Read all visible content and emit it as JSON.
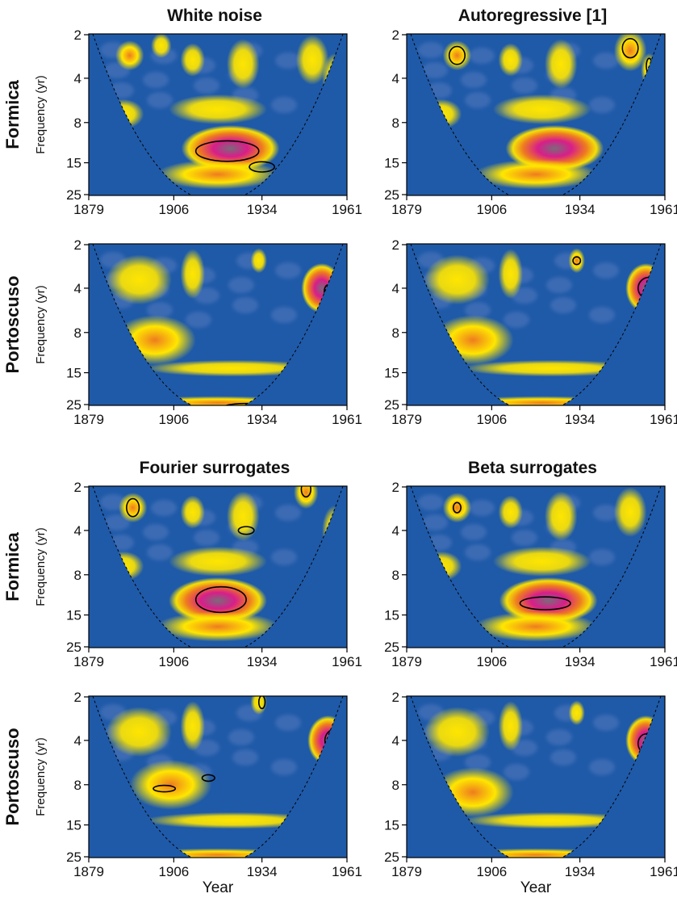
{
  "figure": {
    "column_titles": [
      "White noise",
      "Autoregressive [1]",
      "Fourier surrogates",
      "Beta surrogates"
    ],
    "row_labels": [
      "Formica",
      "Portoscuso"
    ],
    "y_axis_label": "Frequency (yr)",
    "x_axis_label": "Year"
  },
  "colors": {
    "background": "#1f5aa8",
    "low": "#5f80c2",
    "mid": "#ffe600",
    "high": "#ee7c1f",
    "higher": "#d81e8a",
    "peak": "#7a6a7a",
    "contour": "#000000"
  },
  "chart_data": [
    {
      "type": "heatmap",
      "title": "White noise",
      "row": "Formica",
      "x_ticks": [
        "1879",
        "1906",
        "1934",
        "1961"
      ],
      "y_ticks": [
        "2",
        "4",
        "8",
        "15",
        "25"
      ],
      "xlim": [
        1879,
        1961
      ],
      "ylim": [
        2,
        25
      ],
      "y_scale": "log",
      "show_x_label": false,
      "blobs": [
        {
          "x": 1892,
          "y": 2.8,
          "rx": 3.5,
          "ry": 0.18,
          "v": 0.6
        },
        {
          "x": 1902,
          "y": 2.4,
          "rx": 2.5,
          "ry": 0.15,
          "v": 0.4
        },
        {
          "x": 1912,
          "y": 3.0,
          "rx": 3,
          "ry": 0.2,
          "v": 0.45
        },
        {
          "x": 1928,
          "y": 3.2,
          "rx": 4,
          "ry": 0.3,
          "v": 0.5
        },
        {
          "x": 1950,
          "y": 3.0,
          "rx": 4,
          "ry": 0.3,
          "v": 0.55
        },
        {
          "x": 1957,
          "y": 4.0,
          "rx": 3,
          "ry": 0.3,
          "v": 0.4
        },
        {
          "x": 1890,
          "y": 7.0,
          "rx": 5,
          "ry": 0.18,
          "v": 0.5
        },
        {
          "x": 1920,
          "y": 6.5,
          "rx": 12,
          "ry": 0.18,
          "v": 0.45
        },
        {
          "x": 1924,
          "y": 12.0,
          "rx": 12,
          "ry": 0.28,
          "v": 1.0
        },
        {
          "x": 1920,
          "y": 18.0,
          "rx": 15,
          "ry": 0.18,
          "v": 0.6
        }
      ],
      "contours": [
        {
          "x": 1923,
          "y": 12.5,
          "rx": 10,
          "ry": 0.16
        },
        {
          "x": 1934,
          "y": 16.0,
          "rx": 4,
          "ry": 0.08
        }
      ]
    },
    {
      "type": "heatmap",
      "title": "Autoregressive [1]",
      "row": "Formica",
      "x_ticks": [
        "1879",
        "1906",
        "1934",
        "1961"
      ],
      "y_ticks": [
        "2",
        "4",
        "8",
        "15",
        "25"
      ],
      "xlim": [
        1879,
        1961
      ],
      "ylim": [
        2,
        25
      ],
      "y_scale": "log",
      "show_x_label": false,
      "blobs": [
        {
          "x": 1895,
          "y": 2.8,
          "rx": 3.5,
          "ry": 0.18,
          "v": 0.7
        },
        {
          "x": 1912,
          "y": 3.0,
          "rx": 3,
          "ry": 0.2,
          "v": 0.45
        },
        {
          "x": 1928,
          "y": 3.2,
          "rx": 4,
          "ry": 0.3,
          "v": 0.5
        },
        {
          "x": 1950,
          "y": 2.6,
          "rx": 4,
          "ry": 0.25,
          "v": 0.65
        },
        {
          "x": 1956,
          "y": 3.5,
          "rx": 2,
          "ry": 0.2,
          "v": 0.45
        },
        {
          "x": 1890,
          "y": 7.0,
          "rx": 5,
          "ry": 0.18,
          "v": 0.5
        },
        {
          "x": 1922,
          "y": 6.5,
          "rx": 12,
          "ry": 0.18,
          "v": 0.45
        },
        {
          "x": 1926,
          "y": 12.0,
          "rx": 12,
          "ry": 0.28,
          "v": 1.0
        },
        {
          "x": 1920,
          "y": 18.0,
          "rx": 15,
          "ry": 0.18,
          "v": 0.6
        }
      ],
      "contours": [
        {
          "x": 1895,
          "y": 2.8,
          "rx": 2.5,
          "ry": 0.14
        },
        {
          "x": 1950,
          "y": 2.5,
          "rx": 2.5,
          "ry": 0.15
        },
        {
          "x": 1956,
          "y": 3.3,
          "rx": 0.9,
          "ry": 0.12
        }
      ]
    },
    {
      "type": "heatmap",
      "title": "",
      "row": "Portoscuso",
      "x_ticks": [
        "1879",
        "1906",
        "1934",
        "1961"
      ],
      "y_ticks": [
        "2",
        "4",
        "8",
        "15",
        "25"
      ],
      "xlim": [
        1879,
        1961
      ],
      "ylim": [
        2,
        25
      ],
      "y_scale": "log",
      "show_x_label": false,
      "blobs": [
        {
          "x": 1895,
          "y": 3.5,
          "rx": 8,
          "ry": 0.3,
          "v": 0.5
        },
        {
          "x": 1912,
          "y": 3.2,
          "rx": 3,
          "ry": 0.3,
          "v": 0.45
        },
        {
          "x": 1933,
          "y": 2.6,
          "rx": 2,
          "ry": 0.15,
          "v": 0.55
        },
        {
          "x": 1953,
          "y": 4.0,
          "rx": 5,
          "ry": 0.3,
          "v": 0.95
        },
        {
          "x": 1900,
          "y": 9.0,
          "rx": 10,
          "ry": 0.3,
          "v": 0.6
        },
        {
          "x": 1925,
          "y": 14.0,
          "rx": 22,
          "ry": 0.1,
          "v": 0.5
        },
        {
          "x": 1920,
          "y": 24.0,
          "rx": 22,
          "ry": 0.08,
          "v": 0.6
        }
      ],
      "contours": [
        {
          "x": 1955,
          "y": 4.2,
          "rx": 1.2,
          "ry": 0.1
        },
        {
          "x": 1930,
          "y": 25.5,
          "rx": 8,
          "ry": 0.04
        }
      ]
    },
    {
      "type": "heatmap",
      "title": "",
      "row": "Portoscuso",
      "x_ticks": [
        "1879",
        "1906",
        "1934",
        "1961"
      ],
      "y_ticks": [
        "2",
        "4",
        "8",
        "15",
        "25"
      ],
      "xlim": [
        1879,
        1961
      ],
      "ylim": [
        2,
        25
      ],
      "y_scale": "log",
      "show_x_label": false,
      "blobs": [
        {
          "x": 1895,
          "y": 3.5,
          "rx": 8,
          "ry": 0.3,
          "v": 0.5
        },
        {
          "x": 1912,
          "y": 3.2,
          "rx": 3,
          "ry": 0.3,
          "v": 0.45
        },
        {
          "x": 1933,
          "y": 2.6,
          "rx": 2,
          "ry": 0.15,
          "v": 0.6
        },
        {
          "x": 1955,
          "y": 4.0,
          "rx": 5,
          "ry": 0.3,
          "v": 0.95
        },
        {
          "x": 1900,
          "y": 9.0,
          "rx": 10,
          "ry": 0.3,
          "v": 0.6
        },
        {
          "x": 1925,
          "y": 14.0,
          "rx": 22,
          "ry": 0.1,
          "v": 0.5
        },
        {
          "x": 1922,
          "y": 24.0,
          "rx": 22,
          "ry": 0.08,
          "v": 0.6
        }
      ],
      "contours": [
        {
          "x": 1933,
          "y": 2.6,
          "rx": 1.2,
          "ry": 0.06
        },
        {
          "x": 1956,
          "y": 4.0,
          "rx": 3.5,
          "ry": 0.17
        }
      ]
    },
    {
      "type": "heatmap",
      "title": "Fourier surrogates",
      "row": "Formica",
      "x_ticks": [
        "1879",
        "1906",
        "1934",
        "1961"
      ],
      "y_ticks": [
        "2",
        "4",
        "8",
        "15",
        "25"
      ],
      "xlim": [
        1879,
        1961
      ],
      "ylim": [
        2,
        25
      ],
      "y_scale": "log",
      "show_x_label": false,
      "blobs": [
        {
          "x": 1893,
          "y": 2.8,
          "rx": 3.5,
          "ry": 0.18,
          "v": 0.7
        },
        {
          "x": 1912,
          "y": 3.0,
          "rx": 3,
          "ry": 0.2,
          "v": 0.45
        },
        {
          "x": 1928,
          "y": 3.2,
          "rx": 4,
          "ry": 0.3,
          "v": 0.5
        },
        {
          "x": 1948,
          "y": 2.2,
          "rx": 3,
          "ry": 0.2,
          "v": 0.6
        },
        {
          "x": 1957,
          "y": 4.0,
          "rx": 3,
          "ry": 0.3,
          "v": 0.5
        },
        {
          "x": 1890,
          "y": 7.0,
          "rx": 5,
          "ry": 0.18,
          "v": 0.5
        },
        {
          "x": 1920,
          "y": 6.5,
          "rx": 12,
          "ry": 0.18,
          "v": 0.45
        },
        {
          "x": 1920,
          "y": 12.0,
          "rx": 12,
          "ry": 0.28,
          "v": 1.0
        },
        {
          "x": 1920,
          "y": 18.0,
          "rx": 15,
          "ry": 0.18,
          "v": 0.6
        }
      ],
      "contours": [
        {
          "x": 1893,
          "y": 2.8,
          "rx": 2,
          "ry": 0.14
        },
        {
          "x": 1929,
          "y": 4.0,
          "rx": 2.5,
          "ry": 0.06
        },
        {
          "x": 1948,
          "y": 2.1,
          "rx": 1.5,
          "ry": 0.12
        },
        {
          "x": 1958,
          "y": 3.8,
          "rx": 0.8,
          "ry": 0.14
        },
        {
          "x": 1921,
          "y": 11.8,
          "rx": 8,
          "ry": 0.2
        }
      ]
    },
    {
      "type": "heatmap",
      "title": "Beta surrogates",
      "row": "Formica",
      "x_ticks": [
        "1879",
        "1906",
        "1934",
        "1961"
      ],
      "y_ticks": [
        "2",
        "4",
        "8",
        "15",
        "25"
      ],
      "xlim": [
        1879,
        1961
      ],
      "ylim": [
        2,
        25
      ],
      "y_scale": "log",
      "show_x_label": false,
      "blobs": [
        {
          "x": 1895,
          "y": 2.8,
          "rx": 3.5,
          "ry": 0.18,
          "v": 0.65
        },
        {
          "x": 1912,
          "y": 3.0,
          "rx": 3,
          "ry": 0.2,
          "v": 0.45
        },
        {
          "x": 1928,
          "y": 3.2,
          "rx": 4,
          "ry": 0.3,
          "v": 0.5
        },
        {
          "x": 1950,
          "y": 3.0,
          "rx": 4,
          "ry": 0.3,
          "v": 0.55
        },
        {
          "x": 1890,
          "y": 7.0,
          "rx": 5,
          "ry": 0.18,
          "v": 0.5
        },
        {
          "x": 1922,
          "y": 6.5,
          "rx": 12,
          "ry": 0.18,
          "v": 0.45
        },
        {
          "x": 1924,
          "y": 12.0,
          "rx": 12,
          "ry": 0.28,
          "v": 1.0
        },
        {
          "x": 1920,
          "y": 18.0,
          "rx": 15,
          "ry": 0.18,
          "v": 0.6
        }
      ],
      "contours": [
        {
          "x": 1895,
          "y": 2.8,
          "rx": 1.2,
          "ry": 0.08
        },
        {
          "x": 1923,
          "y": 12.5,
          "rx": 8,
          "ry": 0.1
        }
      ]
    },
    {
      "type": "heatmap",
      "title": "",
      "row": "Portoscuso",
      "x_ticks": [
        "1879",
        "1906",
        "1934",
        "1961"
      ],
      "y_ticks": [
        "2",
        "4",
        "8",
        "15",
        "25"
      ],
      "xlim": [
        1879,
        1961
      ],
      "ylim": [
        2,
        25
      ],
      "y_scale": "log",
      "show_x_label": true,
      "blobs": [
        {
          "x": 1895,
          "y": 3.5,
          "rx": 8,
          "ry": 0.3,
          "v": 0.5
        },
        {
          "x": 1912,
          "y": 3.2,
          "rx": 3,
          "ry": 0.3,
          "v": 0.45
        },
        {
          "x": 1933,
          "y": 2.2,
          "rx": 2,
          "ry": 0.15,
          "v": 0.55
        },
        {
          "x": 1955,
          "y": 4.0,
          "rx": 5,
          "ry": 0.3,
          "v": 0.95
        },
        {
          "x": 1905,
          "y": 8.0,
          "rx": 10,
          "ry": 0.3,
          "v": 0.6
        },
        {
          "x": 1925,
          "y": 14.0,
          "rx": 22,
          "ry": 0.1,
          "v": 0.5
        },
        {
          "x": 1920,
          "y": 24.0,
          "rx": 22,
          "ry": 0.08,
          "v": 0.6
        }
      ],
      "contours": [
        {
          "x": 1934,
          "y": 2.2,
          "rx": 1,
          "ry": 0.1
        },
        {
          "x": 1957,
          "y": 4.0,
          "rx": 3,
          "ry": 0.17
        },
        {
          "x": 1903,
          "y": 8.5,
          "rx": 3.5,
          "ry": 0.05
        },
        {
          "x": 1917,
          "y": 7.2,
          "rx": 2,
          "ry": 0.03
        }
      ]
    },
    {
      "type": "heatmap",
      "title": "",
      "row": "Portoscuso",
      "x_ticks": [
        "1879",
        "1906",
        "1934",
        "1961"
      ],
      "y_ticks": [
        "2",
        "4",
        "8",
        "15",
        "25"
      ],
      "xlim": [
        1879,
        1961
      ],
      "ylim": [
        2,
        25
      ],
      "y_scale": "log",
      "show_x_label": true,
      "blobs": [
        {
          "x": 1895,
          "y": 3.5,
          "rx": 8,
          "ry": 0.3,
          "v": 0.5
        },
        {
          "x": 1912,
          "y": 3.2,
          "rx": 3,
          "ry": 0.3,
          "v": 0.45
        },
        {
          "x": 1933,
          "y": 2.6,
          "rx": 2,
          "ry": 0.15,
          "v": 0.45
        },
        {
          "x": 1955,
          "y": 4.0,
          "rx": 5,
          "ry": 0.3,
          "v": 0.9
        },
        {
          "x": 1900,
          "y": 9.0,
          "rx": 10,
          "ry": 0.3,
          "v": 0.6
        },
        {
          "x": 1925,
          "y": 14.0,
          "rx": 22,
          "ry": 0.1,
          "v": 0.5
        },
        {
          "x": 1920,
          "y": 24.0,
          "rx": 22,
          "ry": 0.08,
          "v": 0.6
        }
      ],
      "contours": [
        {
          "x": 1955,
          "y": 4.2,
          "rx": 2.5,
          "ry": 0.15
        }
      ]
    }
  ]
}
